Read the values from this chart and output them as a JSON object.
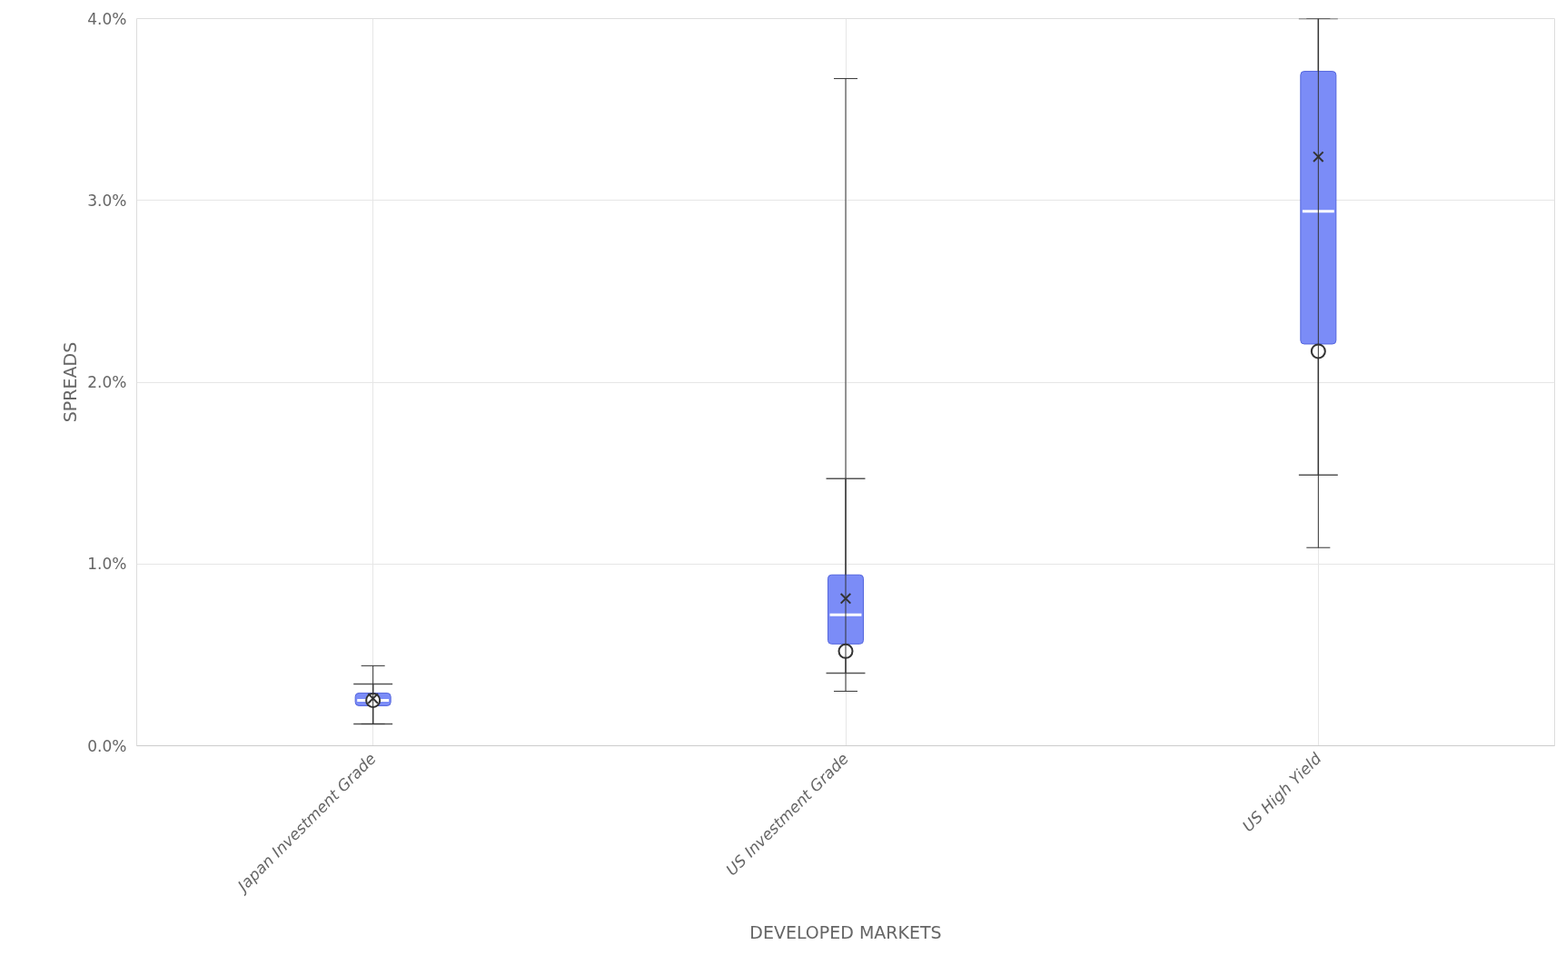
{
  "chart_data": {
    "type": "box",
    "xlabel": "DEVELOPED MARKETS",
    "ylabel": "SPREADS",
    "categories": [
      "Japan Investment Grade",
      "US Investment Grade",
      "US High Yield"
    ],
    "color": "#7b8cf7",
    "boxes": [
      {
        "low": 0.12,
        "q1": 0.22,
        "median": 0.25,
        "q3": 0.29,
        "high": 0.34
      },
      {
        "low": 0.4,
        "q1": 0.56,
        "median": 0.72,
        "q3": 0.94,
        "high": 1.47
      },
      {
        "low": 1.49,
        "q1": 2.21,
        "median": 2.94,
        "q3": 3.71,
        "high": 4.0
      }
    ],
    "series": [
      {
        "type": "scatter",
        "marker": "circle",
        "color": "#333333",
        "x": [
          "Japan Investment Grade",
          "US Investment Grade",
          "US High Yield"
        ],
        "values": [
          0.25,
          0.52,
          2.17
        ]
      },
      {
        "type": "scatter",
        "marker": "cross",
        "color": "#333333",
        "x": [
          "Japan Investment Grade",
          "US Investment Grade",
          "US High Yield"
        ],
        "values": [
          0.26,
          0.81,
          3.24
        ],
        "errors": [
          [
            0.12,
            0.44
          ],
          [
            0.3,
            3.67
          ],
          [
            1.09,
            4.0
          ]
        ]
      }
    ],
    "ylim": [
      0,
      4
    ],
    "yticks": [
      {
        "value": 0,
        "label": "0.0%"
      },
      {
        "value": 1,
        "label": "1.0%"
      },
      {
        "value": 2,
        "label": "2.0%"
      },
      {
        "value": 3,
        "label": "3.0%"
      },
      {
        "value": 4,
        "label": "4.0%"
      }
    ],
    "grid": true
  }
}
